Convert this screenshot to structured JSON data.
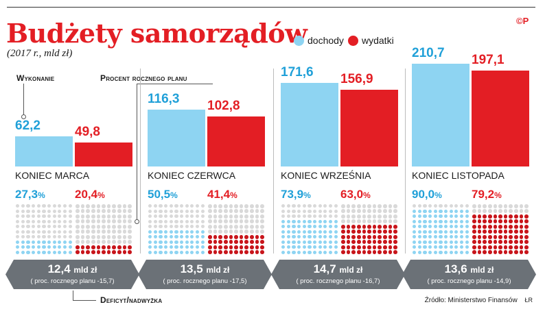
{
  "header": {
    "title": "Budżety samorządów",
    "subtitle": "(2017 r., mld zł)",
    "copyright": "©P"
  },
  "legend": [
    {
      "label": "dochody",
      "color": "#8ed4f2"
    },
    {
      "label": "wydatki",
      "color": "#e31e24"
    }
  ],
  "annotations": {
    "wykonanie": "Wykonanie",
    "procent": "Procent rocznego planu",
    "deficyt": "Deficyt/nadwyżka"
  },
  "source": "Źródło: Ministerstwo Finansów",
  "author": "ŁR",
  "chart_data": {
    "type": "bar",
    "title": "Budżety samorządów",
    "subtitle": "(2017 r., mld zł)",
    "categories": [
      "KONIEC MARCA",
      "KONIEC CZERWCA",
      "KONIEC WRZEŚNIA",
      "KONIEC LISTOPADA"
    ],
    "series": [
      {
        "name": "dochody",
        "color": "#8ed4f2",
        "values": [
          62.2,
          116.3,
          171.6,
          210.7
        ],
        "labels": [
          "62,2",
          "116,3",
          "171,6",
          "210,7"
        ],
        "plan_percent": [
          27.3,
          50.5,
          73.9,
          90.0
        ],
        "plan_percent_labels": [
          "27,3",
          "50,5",
          "73,9",
          "90,0"
        ]
      },
      {
        "name": "wydatki",
        "color": "#e31e24",
        "values": [
          49.8,
          102.8,
          156.9,
          197.1
        ],
        "labels": [
          "49,8",
          "102,8",
          "156,9",
          "197,1"
        ],
        "plan_percent": [
          20.4,
          41.4,
          63.0,
          79.2
        ],
        "plan_percent_labels": [
          "20,4",
          "41,4",
          "63,0",
          "79,2"
        ]
      }
    ],
    "percent_sign": "%",
    "deficit": [
      {
        "value": "12,4",
        "unit": "mld zł",
        "note": "( proc. rocznego planu -15,7)"
      },
      {
        "value": "13,5",
        "unit": "mld zł",
        "note": "( proc. rocznego planu -17,5)"
      },
      {
        "value": "14,7",
        "unit": "mld zł",
        "note": "( proc. rocznego planu -16,7)"
      },
      {
        "value": "13,6",
        "unit": "mld zł",
        "note": "( proc. rocznego planu -14,9)"
      }
    ],
    "ylim": [
      0,
      220
    ],
    "legend_position": "top-right",
    "grid": false
  }
}
